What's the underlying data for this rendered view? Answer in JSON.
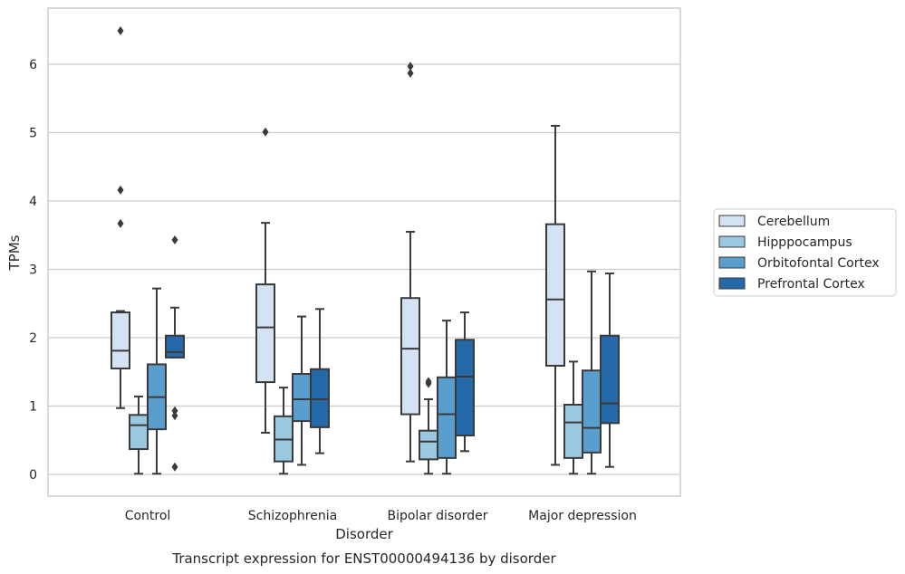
{
  "chart_data": {
    "type": "box",
    "title": "Transcript expression for ENST00000494136 by disorder",
    "xlabel": "Disorder",
    "ylabel": "TPMs",
    "ylim": [
      -0.3,
      6.85
    ],
    "yticks": [
      0,
      1,
      2,
      3,
      4,
      5,
      6
    ],
    "grid": true,
    "legend_position": "right",
    "categories": [
      "Control",
      "Schizophrenia",
      "Bipolar disorder",
      "Major depression"
    ],
    "series": [
      {
        "name": "Cerebellum",
        "color": "#d3e3f3",
        "boxes": [
          {
            "whislo": 0.97,
            "q1": 1.55,
            "med": 1.81,
            "q3": 2.37,
            "whishi": 2.39,
            "fliers": [
              3.67,
              4.16,
              6.49
            ]
          },
          {
            "whislo": 0.61,
            "q1": 1.35,
            "med": 2.15,
            "q3": 2.78,
            "whishi": 3.68,
            "fliers": [
              5.01
            ]
          },
          {
            "whislo": 0.19,
            "q1": 0.88,
            "med": 1.84,
            "q3": 2.58,
            "whishi": 3.55,
            "fliers": [
              5.87,
              5.97
            ]
          },
          {
            "whislo": 0.14,
            "q1": 1.59,
            "med": 2.56,
            "q3": 3.66,
            "whishi": 5.1,
            "fliers": []
          }
        ]
      },
      {
        "name": "Hipppocampus",
        "color": "#9ac8e0",
        "boxes": [
          {
            "whislo": 0.01,
            "q1": 0.37,
            "med": 0.72,
            "q3": 0.87,
            "whishi": 1.14,
            "fliers": []
          },
          {
            "whislo": 0.01,
            "q1": 0.19,
            "med": 0.51,
            "q3": 0.85,
            "whishi": 1.27,
            "fliers": []
          },
          {
            "whislo": 0.01,
            "q1": 0.22,
            "med": 0.48,
            "q3": 0.64,
            "whishi": 1.1,
            "fliers": [
              1.33,
              1.36
            ]
          },
          {
            "whislo": 0.01,
            "q1": 0.24,
            "med": 0.76,
            "q3": 1.02,
            "whishi": 1.65,
            "fliers": []
          }
        ]
      },
      {
        "name": "Orbitofontal Cortex",
        "color": "#5a9ecd",
        "boxes": [
          {
            "whislo": 0.01,
            "q1": 0.66,
            "med": 1.13,
            "q3": 1.61,
            "whishi": 2.72,
            "fliers": []
          },
          {
            "whislo": 0.14,
            "q1": 0.78,
            "med": 1.1,
            "q3": 1.47,
            "whishi": 2.31,
            "fliers": []
          },
          {
            "whislo": 0.01,
            "q1": 0.24,
            "med": 0.88,
            "q3": 1.42,
            "whishi": 2.25,
            "fliers": []
          },
          {
            "whislo": 0.01,
            "q1": 0.32,
            "med": 0.68,
            "q3": 1.52,
            "whishi": 2.97,
            "fliers": []
          }
        ]
      },
      {
        "name": "Prefrontal Cortex",
        "color": "#2569a8",
        "boxes": [
          {
            "whislo": 1.71,
            "q1": 1.71,
            "med": 1.79,
            "q3": 2.03,
            "whishi": 2.44,
            "fliers": [
              0.11,
              0.86,
              0.93,
              3.43
            ]
          },
          {
            "whislo": 0.31,
            "q1": 0.69,
            "med": 1.1,
            "q3": 1.54,
            "whishi": 2.42,
            "fliers": []
          },
          {
            "whislo": 0.34,
            "q1": 0.57,
            "med": 1.43,
            "q3": 1.97,
            "whishi": 2.37,
            "fliers": []
          },
          {
            "whislo": 0.11,
            "q1": 0.75,
            "med": 1.04,
            "q3": 2.03,
            "whishi": 2.94,
            "fliers": []
          }
        ]
      }
    ]
  }
}
